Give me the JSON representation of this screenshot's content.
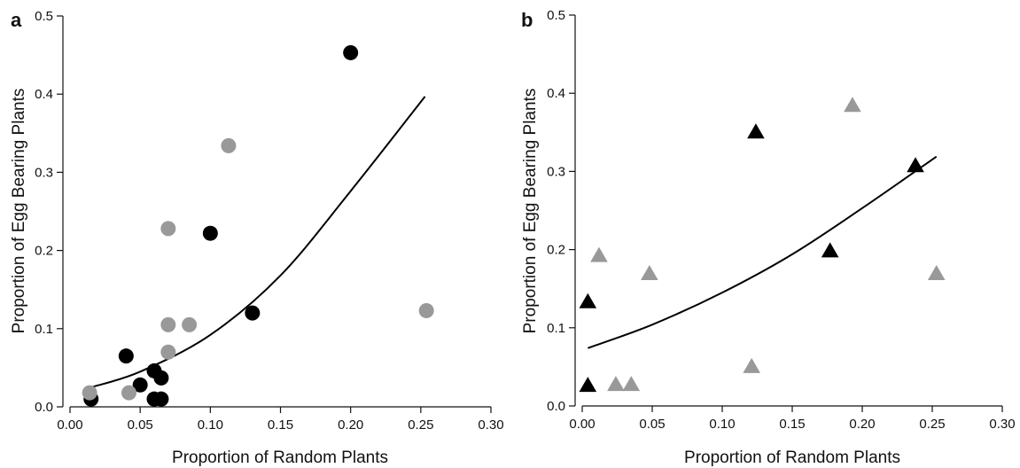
{
  "chart_data": [
    {
      "panel_label": "a",
      "type": "scatter",
      "xlabel": "Proportion of Random Plants",
      "ylabel": "Proportion of Egg Bearing Plants",
      "xlim": [
        0.0,
        0.3
      ],
      "ylim": [
        0.0,
        0.5
      ],
      "xticks": [
        "0.00",
        "0.05",
        "0.10",
        "0.15",
        "0.20",
        "0.25",
        "0.30"
      ],
      "yticks": [
        "0.0",
        "0.1",
        "0.2",
        "0.3",
        "0.4",
        "0.5"
      ],
      "marker": "circle",
      "grid": false,
      "series": [
        {
          "color": "#000000",
          "points": [
            {
              "x": 0.015,
              "y": 0.01
            },
            {
              "x": 0.04,
              "y": 0.065
            },
            {
              "x": 0.05,
              "y": 0.028
            },
            {
              "x": 0.06,
              "y": 0.046
            },
            {
              "x": 0.06,
              "y": 0.01
            },
            {
              "x": 0.065,
              "y": 0.037
            },
            {
              "x": 0.065,
              "y": 0.01
            },
            {
              "x": 0.1,
              "y": 0.222
            },
            {
              "x": 0.13,
              "y": 0.12
            },
            {
              "x": 0.2,
              "y": 0.453
            }
          ]
        },
        {
          "color": "#999999",
          "points": [
            {
              "x": 0.014,
              "y": 0.018
            },
            {
              "x": 0.042,
              "y": 0.018
            },
            {
              "x": 0.07,
              "y": 0.228
            },
            {
              "x": 0.07,
              "y": 0.105
            },
            {
              "x": 0.07,
              "y": 0.07
            },
            {
              "x": 0.085,
              "y": 0.105
            },
            {
              "x": 0.113,
              "y": 0.334
            },
            {
              "x": 0.254,
              "y": 0.123
            }
          ]
        }
      ],
      "fit_curve": {
        "color": "#000000",
        "points": [
          {
            "x": 0.015,
            "y": 0.025
          },
          {
            "x": 0.05,
            "y": 0.045
          },
          {
            "x": 0.1,
            "y": 0.092
          },
          {
            "x": 0.15,
            "y": 0.168
          },
          {
            "x": 0.2,
            "y": 0.276
          },
          {
            "x": 0.253,
            "y": 0.397
          }
        ]
      }
    },
    {
      "panel_label": "b",
      "type": "scatter",
      "xlabel": "Proportion of Random Plants",
      "ylabel": "Proportion of Egg Bearing Plants",
      "xlim": [
        0.0,
        0.3
      ],
      "ylim": [
        0.0,
        0.5
      ],
      "xticks": [
        "0.00",
        "0.05",
        "0.10",
        "0.15",
        "0.20",
        "0.25",
        "0.30"
      ],
      "yticks": [
        "0.0",
        "0.1",
        "0.2",
        "0.3",
        "0.4",
        "0.5"
      ],
      "marker": "triangle",
      "grid": false,
      "series": [
        {
          "color": "#000000",
          "points": [
            {
              "x": 0.004,
              "y": 0.133
            },
            {
              "x": 0.004,
              "y": 0.026
            },
            {
              "x": 0.124,
              "y": 0.35
            },
            {
              "x": 0.177,
              "y": 0.198
            },
            {
              "x": 0.238,
              "y": 0.307
            }
          ]
        },
        {
          "color": "#999999",
          "points": [
            {
              "x": 0.012,
              "y": 0.192
            },
            {
              "x": 0.024,
              "y": 0.027
            },
            {
              "x": 0.035,
              "y": 0.027
            },
            {
              "x": 0.048,
              "y": 0.169
            },
            {
              "x": 0.121,
              "y": 0.05
            },
            {
              "x": 0.193,
              "y": 0.384
            },
            {
              "x": 0.253,
              "y": 0.169
            }
          ]
        }
      ],
      "fit_curve": {
        "color": "#000000",
        "points": [
          {
            "x": 0.004,
            "y": 0.074
          },
          {
            "x": 0.05,
            "y": 0.104
          },
          {
            "x": 0.1,
            "y": 0.145
          },
          {
            "x": 0.15,
            "y": 0.194
          },
          {
            "x": 0.2,
            "y": 0.253
          },
          {
            "x": 0.253,
            "y": 0.319
          }
        ]
      }
    }
  ]
}
